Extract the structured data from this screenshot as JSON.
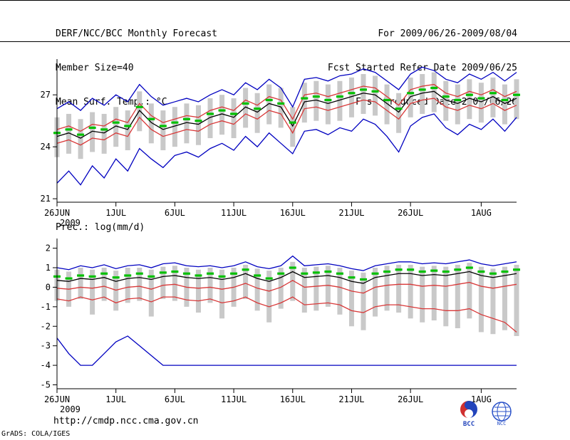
{
  "header": {
    "title": "DERF/NCC/BCC Monthly Forecast",
    "member_size": "Member Size=40",
    "temp_label": "Mean Surf. Temp.: °C",
    "for_range": "For 2009/06/26-2009/08/04",
    "refer_date": "Fcst Started Refer Date 2009/06/25",
    "produced_date": "Fcst Produced Date 2009/06/26"
  },
  "footer": {
    "url": "http://cmdp.ncc.cma.gov.cn",
    "credit": "GrADS: COLA/IGES",
    "bcc_logo_label": "BCC",
    "ncc_logo_label": "NCC"
  },
  "colors": {
    "blue": "#0000c0",
    "red": "#d83838",
    "black": "#000000",
    "green": "#00c000",
    "gray": "#c9c9c9",
    "axis": "#000000"
  },
  "chart_data": [
    {
      "type": "line",
      "title": "Mean Surf. Temp.: °C",
      "ylabel": "°C",
      "grid": false,
      "legend": "none",
      "x_dates": [
        "26JUN",
        "27JUN",
        "28JUN",
        "29JUN",
        "30JUN",
        "1JUL",
        "2JUL",
        "3JUL",
        "4JUL",
        "5JUL",
        "6JUL",
        "7JUL",
        "8JUL",
        "9JUL",
        "10JUL",
        "11JUL",
        "12JUL",
        "13JUL",
        "14JUL",
        "15JUL",
        "16JUL",
        "17JUL",
        "18JUL",
        "19JUL",
        "20JUL",
        "21JUL",
        "22JUL",
        "23JUL",
        "24JUL",
        "25JUL",
        "26JUL",
        "27JUL",
        "28JUL",
        "29JUL",
        "30JUL",
        "31JUL",
        "1AUG",
        "2AUG",
        "3AUG",
        "4AUG"
      ],
      "x_tick_indices": [
        0,
        5,
        10,
        15,
        20,
        25,
        30,
        36
      ],
      "x_tick_labels": [
        "26JUN",
        "1JUL",
        "6JUL",
        "11JUL",
        "16JUL",
        "21JUL",
        "26JUL",
        "1AUG"
      ],
      "year_label": "2009",
      "ylim": [
        20.8,
        28.9
      ],
      "yticks": [
        21,
        24,
        27
      ],
      "series": [
        {
          "name": "member-max",
          "color": "blue",
          "style": "line",
          "values": [
            26.2,
            26.6,
            26.1,
            26.8,
            26.4,
            27.0,
            26.6,
            27.6,
            26.9,
            26.4,
            26.6,
            26.8,
            26.6,
            27.0,
            27.3,
            27.0,
            27.7,
            27.3,
            27.9,
            27.4,
            26.3,
            27.9,
            28.0,
            27.8,
            28.1,
            28.2,
            28.5,
            28.3,
            27.8,
            27.3,
            28.2,
            28.6,
            28.4,
            27.9,
            27.7,
            28.2,
            27.9,
            28.3,
            27.8,
            28.3
          ]
        },
        {
          "name": "upper-spread",
          "color": "red",
          "style": "line",
          "values": [
            25.0,
            25.2,
            24.9,
            25.3,
            25.2,
            25.6,
            25.4,
            26.5,
            25.8,
            25.4,
            25.6,
            25.8,
            25.7,
            26.1,
            26.3,
            26.1,
            26.7,
            26.4,
            26.9,
            26.7,
            25.6,
            27.0,
            27.1,
            26.9,
            27.1,
            27.3,
            27.5,
            27.4,
            26.9,
            26.4,
            27.3,
            27.5,
            27.6,
            27.1,
            26.9,
            27.2,
            27.0,
            27.3,
            26.9,
            27.2
          ]
        },
        {
          "name": "ensemble-mean",
          "color": "black",
          "style": "line",
          "values": [
            24.6,
            24.8,
            24.5,
            24.9,
            24.8,
            25.2,
            25.0,
            26.1,
            25.4,
            25.0,
            25.2,
            25.4,
            25.3,
            25.7,
            25.9,
            25.7,
            26.3,
            26.0,
            26.5,
            26.3,
            25.2,
            26.6,
            26.7,
            26.5,
            26.7,
            26.9,
            27.1,
            27.0,
            26.5,
            26.0,
            26.9,
            27.1,
            27.2,
            26.7,
            26.5,
            26.8,
            26.6,
            26.9,
            26.5,
            26.8
          ]
        },
        {
          "name": "lower-spread",
          "color": "red",
          "style": "line",
          "values": [
            24.2,
            24.4,
            24.1,
            24.5,
            24.4,
            24.8,
            24.6,
            25.7,
            25.0,
            24.6,
            24.8,
            25.0,
            24.9,
            25.3,
            25.5,
            25.3,
            25.9,
            25.6,
            26.1,
            25.9,
            24.8,
            26.2,
            26.3,
            26.1,
            26.3,
            26.5,
            26.7,
            26.6,
            26.1,
            25.6,
            26.5,
            26.7,
            26.8,
            26.3,
            26.1,
            26.4,
            26.2,
            26.5,
            26.1,
            26.4
          ]
        },
        {
          "name": "member-min",
          "color": "blue",
          "style": "line",
          "values": [
            21.9,
            22.6,
            21.8,
            22.9,
            22.2,
            23.3,
            22.6,
            23.9,
            23.3,
            22.8,
            23.5,
            23.7,
            23.4,
            23.9,
            24.2,
            23.8,
            24.6,
            24.0,
            24.8,
            24.2,
            23.6,
            24.9,
            25.0,
            24.7,
            25.1,
            24.9,
            25.6,
            25.3,
            24.6,
            23.7,
            25.2,
            25.7,
            25.9,
            25.1,
            24.7,
            25.3,
            25.0,
            25.6,
            24.9,
            25.7
          ]
        },
        {
          "name": "ensemble-median",
          "color": "green",
          "style": "dash-marks",
          "values": [
            24.8,
            25.0,
            24.7,
            25.1,
            25.0,
            25.4,
            25.2,
            26.3,
            25.6,
            25.2,
            25.4,
            25.6,
            25.5,
            25.9,
            26.1,
            25.9,
            26.5,
            26.2,
            26.7,
            26.5,
            25.4,
            26.8,
            26.9,
            26.7,
            26.9,
            27.1,
            27.3,
            27.2,
            26.7,
            26.2,
            27.1,
            27.3,
            27.4,
            26.9,
            26.7,
            27.0,
            26.8,
            27.1,
            26.7,
            27.0
          ]
        }
      ],
      "bars": {
        "name": "member-range-bar",
        "color": "gray",
        "lo": [
          23.4,
          23.6,
          23.3,
          23.7,
          23.6,
          24.0,
          23.8,
          24.9,
          24.2,
          23.8,
          24.0,
          24.2,
          24.1,
          24.5,
          24.7,
          24.5,
          25.1,
          24.8,
          25.3,
          25.1,
          24.0,
          25.4,
          25.5,
          25.3,
          25.5,
          25.7,
          25.9,
          25.8,
          25.3,
          24.8,
          25.7,
          25.9,
          26.0,
          25.5,
          25.3,
          25.6,
          25.4,
          25.7,
          25.3,
          25.6
        ],
        "hi": [
          25.7,
          25.9,
          25.6,
          26.0,
          25.9,
          26.3,
          26.1,
          27.2,
          26.5,
          26.1,
          26.3,
          26.5,
          26.4,
          26.8,
          27.0,
          26.8,
          27.4,
          27.1,
          27.6,
          27.4,
          26.3,
          27.7,
          27.8,
          27.6,
          27.8,
          28.0,
          28.2,
          28.1,
          27.6,
          27.1,
          28.0,
          28.2,
          28.3,
          27.8,
          27.6,
          27.9,
          27.7,
          28.0,
          27.6,
          27.9
        ]
      }
    },
    {
      "type": "line",
      "title": "Prec.: log(mm/d)",
      "ylabel": "log(mm/d)",
      "grid": false,
      "legend": "none",
      "x_dates": [
        "26JUN",
        "27JUN",
        "28JUN",
        "29JUN",
        "30JUN",
        "1JUL",
        "2JUL",
        "3JUL",
        "4JUL",
        "5JUL",
        "6JUL",
        "7JUL",
        "8JUL",
        "9JUL",
        "10JUL",
        "11JUL",
        "12JUL",
        "13JUL",
        "14JUL",
        "15JUL",
        "16JUL",
        "17JUL",
        "18JUL",
        "19JUL",
        "20JUL",
        "21JUL",
        "22JUL",
        "23JUL",
        "24JUL",
        "25JUL",
        "26JUL",
        "27JUL",
        "28JUL",
        "29JUL",
        "30JUL",
        "31JUL",
        "1AUG",
        "2AUG",
        "3AUG",
        "4AUG"
      ],
      "x_tick_indices": [
        0,
        5,
        10,
        15,
        20,
        25,
        30,
        36
      ],
      "x_tick_labels": [
        "26JUN",
        "1JUL",
        "6JUL",
        "11JUL",
        "16JUL",
        "21JUL",
        "26JUL",
        "1AUG"
      ],
      "year_label": "2009",
      "ylim": [
        -5.2,
        2.35
      ],
      "yticks": [
        2,
        1,
        0,
        -1,
        -2,
        -3,
        -4,
        -5
      ],
      "series": [
        {
          "name": "member-max",
          "color": "blue",
          "style": "line",
          "values": [
            1.0,
            0.9,
            1.1,
            1.0,
            1.15,
            0.95,
            1.1,
            1.15,
            1.0,
            1.2,
            1.25,
            1.1,
            1.05,
            1.1,
            1.0,
            1.1,
            1.3,
            1.05,
            0.95,
            1.1,
            1.6,
            1.1,
            1.15,
            1.2,
            1.1,
            0.95,
            0.85,
            1.1,
            1.2,
            1.3,
            1.3,
            1.2,
            1.25,
            1.2,
            1.3,
            1.4,
            1.2,
            1.1,
            1.2,
            1.3
          ]
        },
        {
          "name": "upper-spread",
          "color": "red",
          "style": "line",
          "values": [
            -0.05,
            -0.1,
            0.0,
            -0.05,
            0.05,
            -0.15,
            0.0,
            0.05,
            -0.1,
            0.1,
            0.15,
            0.0,
            -0.05,
            0.0,
            -0.1,
            0.0,
            0.2,
            -0.05,
            -0.2,
            0.0,
            0.35,
            0.0,
            0.05,
            0.1,
            0.0,
            -0.2,
            -0.3,
            0.0,
            0.1,
            0.15,
            0.15,
            0.05,
            0.1,
            0.05,
            0.15,
            0.25,
            0.05,
            -0.05,
            0.05,
            0.15
          ]
        },
        {
          "name": "ensemble-mean",
          "color": "black",
          "style": "line",
          "values": [
            0.35,
            0.3,
            0.45,
            0.4,
            0.5,
            0.3,
            0.45,
            0.5,
            0.4,
            0.55,
            0.6,
            0.5,
            0.45,
            0.5,
            0.4,
            0.5,
            0.7,
            0.45,
            0.3,
            0.5,
            0.8,
            0.5,
            0.55,
            0.6,
            0.5,
            0.3,
            0.2,
            0.5,
            0.6,
            0.7,
            0.7,
            0.6,
            0.65,
            0.6,
            0.7,
            0.8,
            0.6,
            0.5,
            0.6,
            0.7
          ]
        },
        {
          "name": "lower-spread",
          "color": "red",
          "style": "line",
          "values": [
            -0.6,
            -0.7,
            -0.5,
            -0.65,
            -0.5,
            -0.8,
            -0.6,
            -0.55,
            -0.75,
            -0.5,
            -0.5,
            -0.65,
            -0.7,
            -0.6,
            -0.8,
            -0.7,
            -0.5,
            -0.8,
            -1.0,
            -0.8,
            -0.5,
            -0.9,
            -0.85,
            -0.8,
            -0.9,
            -1.2,
            -1.3,
            -1.0,
            -0.9,
            -0.9,
            -1.0,
            -1.1,
            -1.1,
            -1.2,
            -1.2,
            -1.1,
            -1.4,
            -1.6,
            -1.8,
            -2.3
          ]
        },
        {
          "name": "member-min",
          "color": "blue",
          "style": "line",
          "values": [
            -2.6,
            -3.4,
            -4.0,
            -4.0,
            -3.4,
            -2.8,
            -2.5,
            -3.0,
            -3.5,
            -4.0,
            -4.0,
            -4.0,
            -4.0,
            -4.0,
            -4.0,
            -4.0,
            -4.0,
            -4.0,
            -4.0,
            -4.0,
            -4.0,
            -4.0,
            -4.0,
            -4.0,
            -4.0,
            -4.0,
            -4.0,
            -4.0,
            -4.0,
            -4.0,
            -4.0,
            -4.0,
            -4.0,
            -4.0,
            -4.0,
            -4.0,
            -4.0,
            -4.0,
            -4.0,
            -4.0
          ]
        },
        {
          "name": "ensemble-median",
          "color": "green",
          "style": "dash-marks",
          "values": [
            0.55,
            0.45,
            0.6,
            0.55,
            0.7,
            0.5,
            0.6,
            0.7,
            0.55,
            0.75,
            0.8,
            0.7,
            0.6,
            0.7,
            0.55,
            0.7,
            0.9,
            0.6,
            0.45,
            0.7,
            1.0,
            0.7,
            0.75,
            0.8,
            0.7,
            0.5,
            0.4,
            0.7,
            0.8,
            0.9,
            0.9,
            0.8,
            0.85,
            0.8,
            0.9,
            1.0,
            0.8,
            0.7,
            0.8,
            0.9
          ]
        }
      ],
      "bars": {
        "name": "member-range-bar",
        "color": "gray",
        "lo": [
          -0.7,
          -1.0,
          -0.6,
          -1.4,
          -0.7,
          -1.2,
          -0.8,
          -0.7,
          -1.5,
          -0.6,
          -0.7,
          -1.0,
          -1.3,
          -0.8,
          -1.6,
          -1.0,
          -0.6,
          -1.2,
          -1.8,
          -1.1,
          -0.7,
          -1.3,
          -1.2,
          -1.0,
          -1.4,
          -2.0,
          -2.2,
          -1.5,
          -1.2,
          -1.3,
          -1.6,
          -1.8,
          -1.7,
          -2.0,
          -2.1,
          -1.6,
          -2.3,
          -2.4,
          -2.2,
          -2.5
        ],
        "hi": [
          0.9,
          0.8,
          1.0,
          0.9,
          1.0,
          0.85,
          1.0,
          1.0,
          0.9,
          1.05,
          1.1,
          1.0,
          0.9,
          1.0,
          0.9,
          1.0,
          1.15,
          0.95,
          0.85,
          1.0,
          1.3,
          1.0,
          1.05,
          1.1,
          1.0,
          0.85,
          0.75,
          1.0,
          1.1,
          1.15,
          1.15,
          1.05,
          1.1,
          1.05,
          1.15,
          1.25,
          1.05,
          0.95,
          1.05,
          1.15
        ]
      }
    }
  ]
}
